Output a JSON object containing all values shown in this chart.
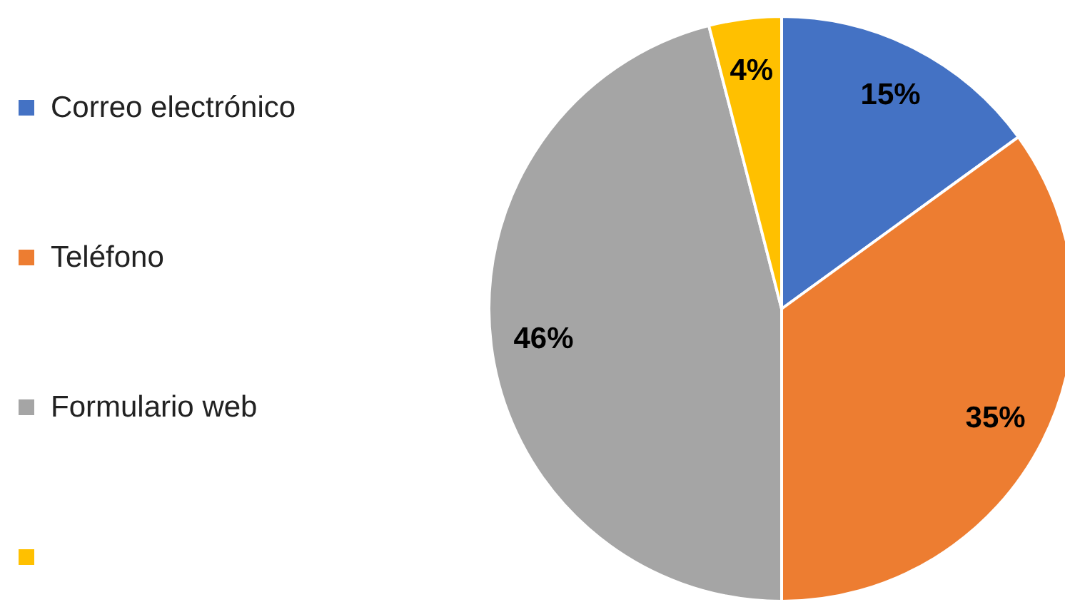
{
  "chart_data": {
    "type": "pie",
    "categories": [
      "Correo electrónico",
      "Teléfono",
      "Formulario web",
      null
    ],
    "values": [
      15,
      35,
      46,
      4
    ],
    "colors": [
      "#4472c4",
      "#ed7d31",
      "#a5a5a5",
      "#ffc000"
    ],
    "value_labels": [
      "15%",
      "35%",
      "46%",
      "4%"
    ],
    "legend": "left"
  }
}
